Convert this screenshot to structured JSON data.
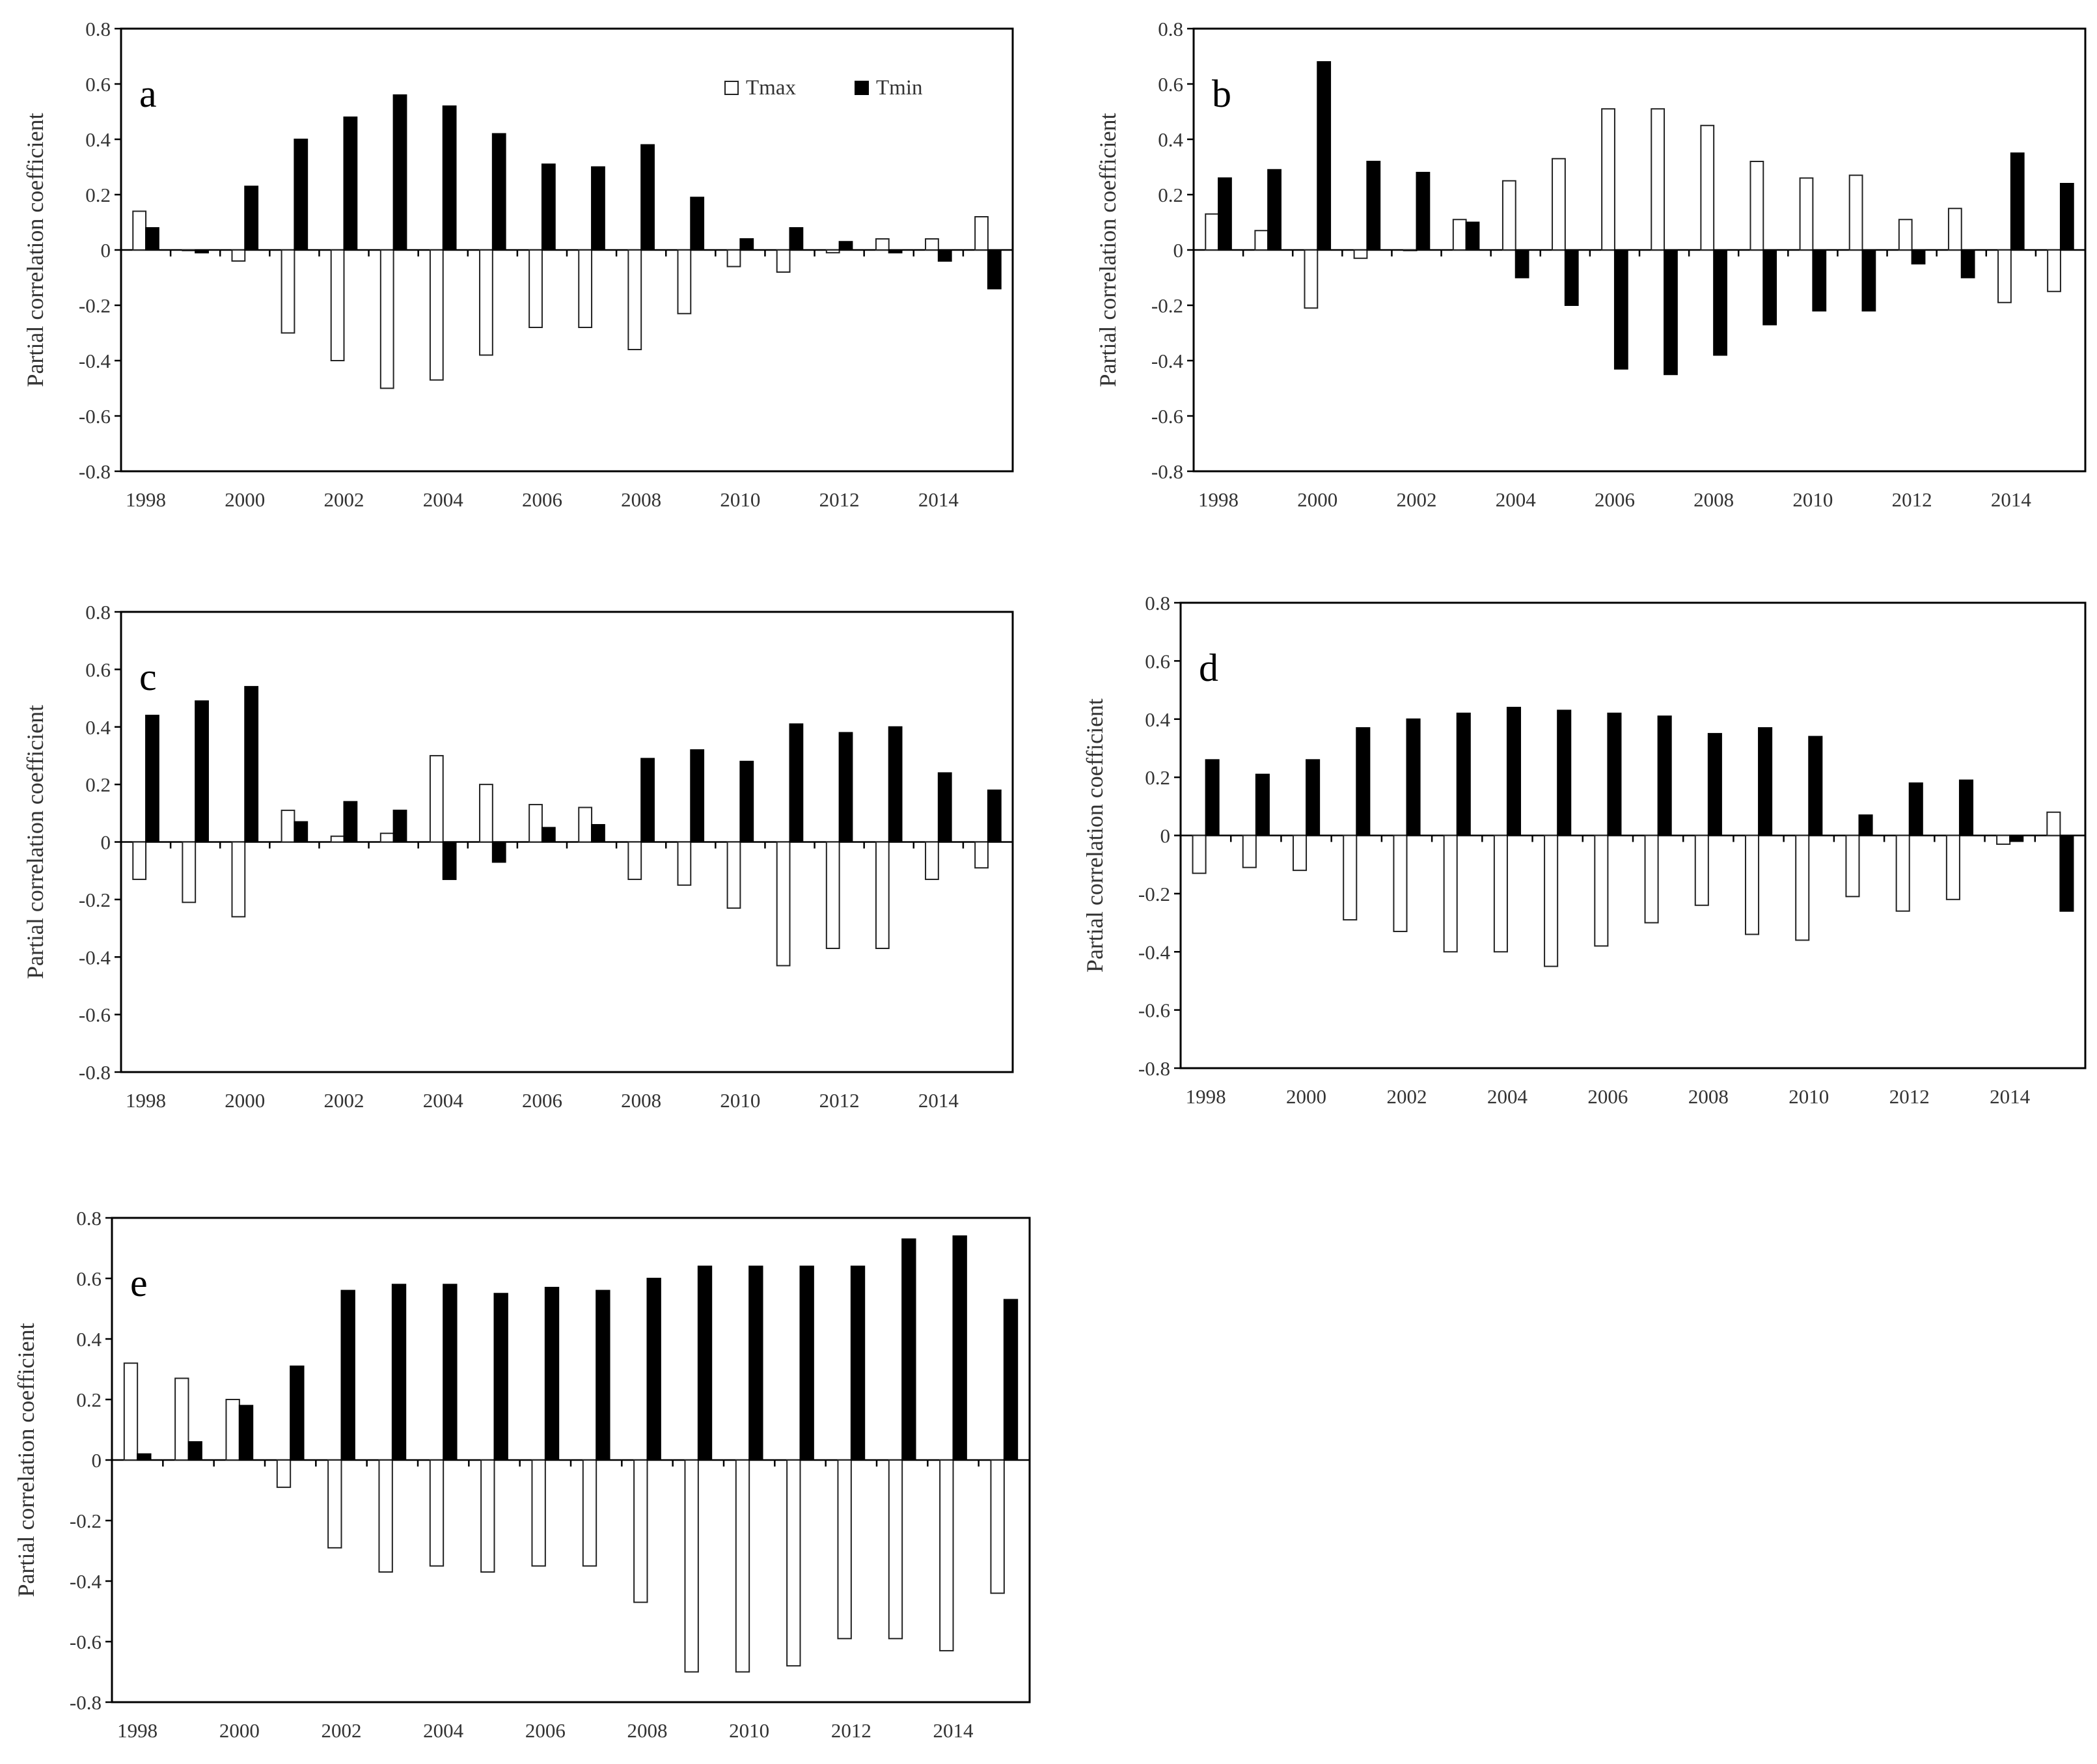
{
  "chart_data": [
    {
      "type": "bar",
      "panel_label": "a",
      "ylabel": "Partial correlation coefficient",
      "ylim": [
        -0.8,
        0.8
      ],
      "yticks": [
        "0.8",
        "0.6",
        "0.4",
        "0.2",
        "0",
        "-0.2",
        "-0.4",
        "-0.6",
        "-0.8"
      ],
      "categories": [
        "1998",
        "1999",
        "2000",
        "2001",
        "2002",
        "2003",
        "2004",
        "2005",
        "2006",
        "2007",
        "2008",
        "2009",
        "2010",
        "2011",
        "2012",
        "2013",
        "2014",
        "2015"
      ],
      "xtick_labels": [
        "1998",
        "2000",
        "2002",
        "2004",
        "2006",
        "2008",
        "2010",
        "2012",
        "2014"
      ],
      "legend": true,
      "legend_placement": "top-right",
      "series": [
        {
          "name": "Tmax",
          "color": "#ffffff",
          "values": [
            0.14,
            0.0,
            -0.04,
            -0.3,
            -0.4,
            -0.5,
            -0.47,
            -0.38,
            -0.28,
            -0.28,
            -0.36,
            -0.23,
            -0.06,
            -0.08,
            -0.01,
            0.04,
            0.04,
            0.12
          ]
        },
        {
          "name": "Tmin",
          "color": "#000000",
          "values": [
            0.08,
            -0.01,
            0.23,
            0.4,
            0.48,
            0.56,
            0.52,
            0.42,
            0.31,
            0.3,
            0.38,
            0.19,
            0.04,
            0.08,
            0.03,
            -0.01,
            -0.04,
            -0.14
          ]
        }
      ]
    },
    {
      "type": "bar",
      "panel_label": "b",
      "ylabel": "Partial correlation coefficient",
      "ylim": [
        -0.8,
        0.8
      ],
      "yticks": [
        "0.8",
        "0.6",
        "0.4",
        "0.2",
        "0",
        "-0.2",
        "-0.4",
        "-0.6",
        "-0.8"
      ],
      "categories": [
        "1998",
        "1999",
        "2000",
        "2001",
        "2002",
        "2003",
        "2004",
        "2005",
        "2006",
        "2007",
        "2008",
        "2009",
        "2010",
        "2011",
        "2012",
        "2013",
        "2014",
        "2015"
      ],
      "xtick_labels": [
        "1998",
        "2000",
        "2002",
        "2004",
        "2006",
        "2008",
        "2010",
        "2012",
        "2014"
      ],
      "legend": false,
      "series": [
        {
          "name": "Tmax",
          "color": "#ffffff",
          "values": [
            0.13,
            0.07,
            -0.21,
            -0.03,
            0.0,
            0.11,
            0.25,
            0.33,
            0.51,
            0.51,
            0.45,
            0.32,
            0.26,
            0.27,
            0.11,
            0.15,
            -0.19,
            -0.15
          ]
        },
        {
          "name": "Tmin",
          "color": "#000000",
          "values": [
            0.26,
            0.29,
            0.68,
            0.32,
            0.28,
            0.1,
            -0.1,
            -0.2,
            -0.43,
            -0.45,
            -0.38,
            -0.27,
            -0.22,
            -0.22,
            -0.05,
            -0.1,
            0.35,
            0.24
          ]
        }
      ]
    },
    {
      "type": "bar",
      "panel_label": "c",
      "ylabel": "Partial correlation coefficient",
      "ylim": [
        -0.8,
        0.8
      ],
      "yticks": [
        "0.8",
        "0.6",
        "0.4",
        "0.2",
        "0",
        "-0.2",
        "-0.4",
        "-0.6",
        "-0.8"
      ],
      "categories": [
        "1998",
        "1999",
        "2000",
        "2001",
        "2002",
        "2003",
        "2004",
        "2005",
        "2006",
        "2007",
        "2008",
        "2009",
        "2010",
        "2011",
        "2012",
        "2013",
        "2014",
        "2015"
      ],
      "xtick_labels": [
        "1998",
        "2000",
        "2002",
        "2004",
        "2006",
        "2008",
        "2010",
        "2012",
        "2014"
      ],
      "legend": false,
      "series": [
        {
          "name": "Tmax",
          "color": "#ffffff",
          "values": [
            -0.13,
            -0.21,
            -0.26,
            0.11,
            0.02,
            0.03,
            0.3,
            0.2,
            0.13,
            0.12,
            -0.13,
            -0.15,
            -0.23,
            -0.43,
            -0.37,
            -0.37,
            -0.13,
            -0.09
          ]
        },
        {
          "name": "Tmin",
          "color": "#000000",
          "values": [
            0.44,
            0.49,
            0.54,
            0.07,
            0.14,
            0.11,
            -0.13,
            -0.07,
            0.05,
            0.06,
            0.29,
            0.32,
            0.28,
            0.41,
            0.38,
            0.4,
            0.24,
            0.18
          ]
        }
      ]
    },
    {
      "type": "bar",
      "panel_label": "d",
      "ylabel": "Partial correlation coefficient",
      "ylim": [
        -0.8,
        0.8
      ],
      "yticks": [
        "0.8",
        "0.6",
        "0.4",
        "0.2",
        "0",
        "-0.2",
        "-0.4",
        "-0.6",
        "-0.8"
      ],
      "categories": [
        "1998",
        "1999",
        "2000",
        "2001",
        "2002",
        "2003",
        "2004",
        "2005",
        "2006",
        "2007",
        "2008",
        "2009",
        "2010",
        "2011",
        "2012",
        "2013",
        "2014",
        "2015"
      ],
      "xtick_labels": [
        "1998",
        "2000",
        "2002",
        "2004",
        "2006",
        "2008",
        "2010",
        "2012",
        "2014"
      ],
      "legend": false,
      "series": [
        {
          "name": "Tmax",
          "color": "#ffffff",
          "values": [
            -0.13,
            -0.11,
            -0.12,
            -0.29,
            -0.33,
            -0.4,
            -0.4,
            -0.45,
            -0.38,
            -0.3,
            -0.24,
            -0.34,
            -0.36,
            -0.21,
            -0.26,
            -0.22,
            -0.03,
            0.08
          ]
        },
        {
          "name": "Tmin",
          "color": "#000000",
          "values": [
            0.26,
            0.21,
            0.26,
            0.37,
            0.4,
            0.42,
            0.44,
            0.43,
            0.42,
            0.41,
            0.35,
            0.37,
            0.34,
            0.07,
            0.18,
            0.19,
            -0.02,
            -0.26
          ]
        }
      ]
    },
    {
      "type": "bar",
      "panel_label": "e",
      "ylabel": "Partial correlation coefficient",
      "ylim": [
        -0.8,
        0.8
      ],
      "yticks": [
        "0.8",
        "0.6",
        "0.4",
        "0.2",
        "0",
        "-0.2",
        "-0.4",
        "-0.6",
        "-0.8"
      ],
      "categories": [
        "1998",
        "1999",
        "2000",
        "2001",
        "2002",
        "2003",
        "2004",
        "2005",
        "2006",
        "2007",
        "2008",
        "2009",
        "2010",
        "2011",
        "2012",
        "2013",
        "2014",
        "2015"
      ],
      "xtick_labels": [
        "1998",
        "2000",
        "2002",
        "2004",
        "2006",
        "2008",
        "2010",
        "2012",
        "2014"
      ],
      "legend": false,
      "series": [
        {
          "name": "Tmax",
          "color": "#ffffff",
          "values": [
            0.32,
            0.27,
            0.2,
            -0.09,
            -0.29,
            -0.37,
            -0.35,
            -0.37,
            -0.35,
            -0.35,
            -0.47,
            -0.7,
            -0.7,
            -0.68,
            -0.59,
            -0.59,
            -0.63,
            -0.44
          ]
        },
        {
          "name": "Tmin",
          "color": "#000000",
          "values": [
            0.02,
            0.06,
            0.18,
            0.31,
            0.56,
            0.58,
            0.58,
            0.55,
            0.57,
            0.56,
            0.6,
            0.64,
            0.64,
            0.64,
            0.64,
            0.73,
            0.74,
            0.53
          ]
        }
      ]
    }
  ]
}
